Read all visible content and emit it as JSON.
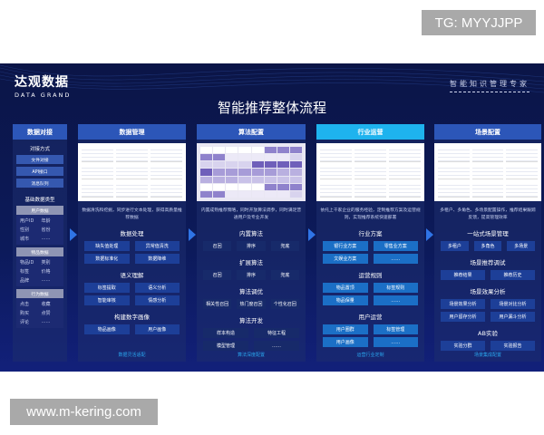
{
  "watermarks": {
    "top": "TG: MYYJJPP",
    "bottom": "www.m-kering.com"
  },
  "logo": {
    "cn": "达观数据",
    "en": "DATA GRAND"
  },
  "slogan": "智能知识管理专家",
  "title": "智能推荐整体流程",
  "col1": {
    "header": "数据对接",
    "methods_title": "对接方式",
    "methods": [
      "文件对接",
      "API接口",
      "消息队列"
    ],
    "types_title": "基础数据类型",
    "groups": [
      {
        "name": "用户数据",
        "items": [
          "用户ID",
          "年龄",
          "性别",
          "省份",
          "城市",
          "……"
        ]
      },
      {
        "name": "物品数据",
        "items": [
          "物品ID",
          "类别",
          "标签",
          "价格",
          "品牌",
          "……"
        ]
      },
      {
        "name": "行为数据",
        "items": [
          "点击",
          "收藏",
          "购买",
          "点赞",
          "评论",
          "……"
        ]
      }
    ]
  },
  "col2": {
    "header": "数据管理",
    "desc": "数据清洗和挖掘，同步进行文本处理，获得高质量推荐数据",
    "sections": [
      {
        "title": "数据处理",
        "items": [
          "缺失值处理",
          "异常值清洗",
          "数据标准化",
          "数据降维"
        ]
      },
      {
        "title": "语义理解",
        "items": [
          "标签提取",
          "语义分析",
          "智能审核",
          "情感分析"
        ]
      },
      {
        "title": "构建数字画像",
        "items": [
          "物品画像",
          "用户画像"
        ]
      }
    ],
    "footer": "数据灵活适配"
  },
  "col3": {
    "header": "算法配置",
    "desc": "内置成熟推荐策略，同时开放算法调参，同时满足普通用户及专业开发",
    "sections": [
      {
        "title": "内置算法",
        "items": [
          "召回",
          "排序",
          "兜底"
        ]
      },
      {
        "title": "扩展算法",
        "items": [
          "召回",
          "排序",
          "兜底"
        ]
      },
      {
        "title": "算法调优",
        "items": [
          "相关性召回",
          "热门度召回",
          "个性化召回"
        ]
      },
      {
        "title": "算法开发",
        "items": [
          "样本构造",
          "特征工程",
          "模型管理",
          "……"
        ]
      }
    ],
    "footer": "算法深度配置"
  },
  "col4": {
    "header": "行业运营",
    "desc": "依托上千家企业的服务经验，定制推荐方案及运营规则，实现推荐系统快速部署",
    "sections": [
      {
        "title": "行业方案",
        "items": [
          "银行业方案",
          "零售业方案",
          "文娱业方案",
          "……"
        ]
      },
      {
        "title": "运营规则",
        "items": [
          "物品置顶",
          "标签规则",
          "物品保量",
          "……"
        ]
      },
      {
        "title": "用户运营",
        "items": [
          "用户圈群",
          "标签管理",
          "用户画像",
          "……"
        ]
      }
    ],
    "footer": "运营行业定制"
  },
  "col5": {
    "header": "场景配置",
    "desc": "多租户、多角色、多场景配置操作，推荐结果跟踪反馈，提高管理效率",
    "sections": [
      {
        "title": "一站式场景管理",
        "items": [
          "多租户",
          "多角色",
          "多场景"
        ]
      },
      {
        "title": "场景推荐调试",
        "items": [
          "推荐结果",
          "推荐历史"
        ]
      },
      {
        "title": "场景效果分析",
        "items": [
          "场景效果分析",
          "场景对比分析",
          "用户留存分析",
          "用户漏斗分析"
        ]
      },
      {
        "title": "AB实验",
        "items": [
          "实验分群",
          "实验报告"
        ]
      }
    ],
    "footer": "场景集成配置"
  },
  "colors": {
    "background": "#0c1a5a",
    "header": "#2c56b8",
    "highlight": "#1eb3ee",
    "footer_text": "#2aa7ee"
  }
}
